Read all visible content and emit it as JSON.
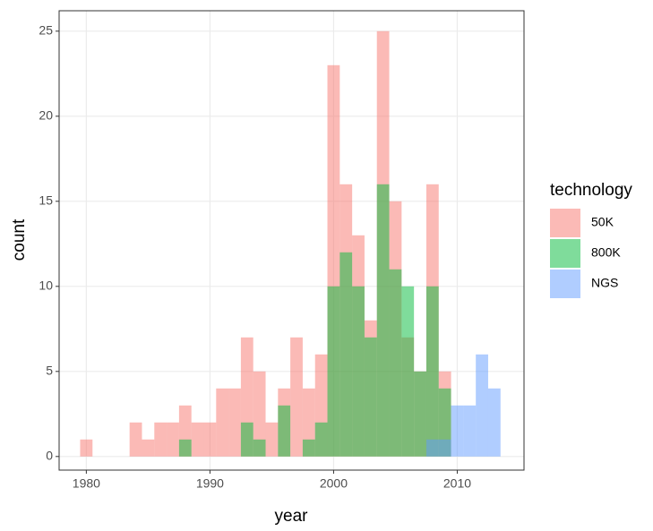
{
  "chart_data": {
    "type": "histogram",
    "x_label": "year",
    "y_label": "count",
    "legend_title": "technology",
    "bins": [
      1979.5,
      1980.5,
      1981.5,
      1982.5,
      1983.5,
      1984.5,
      1985.5,
      1986.5,
      1987.5,
      1988.5,
      1989.5,
      1990.5,
      1991.5,
      1992.5,
      1993.5,
      1994.5,
      1995.5,
      1996.5,
      1997.5,
      1998.5,
      1999.5,
      2000.5,
      2001.5,
      2002.5,
      2003.5,
      2004.5,
      2005.5,
      2006.5,
      2007.5,
      2008.5,
      2009.5,
      2010.5,
      2011.5,
      2012.5,
      2013.5
    ],
    "series": [
      {
        "name": "50K",
        "color": "#F8766D",
        "values": [
          1,
          0,
          0,
          0,
          2,
          1,
          2,
          2,
          3,
          2,
          2,
          4,
          4,
          7,
          5,
          2,
          4,
          7,
          4,
          6,
          23,
          16,
          13,
          8,
          25,
          15,
          7,
          5,
          16,
          5,
          0,
          0,
          0,
          0
        ]
      },
      {
        "name": "800K",
        "color": "#00BA38",
        "values": [
          0,
          0,
          0,
          0,
          0,
          0,
          0,
          0,
          1,
          0,
          0,
          0,
          0,
          2,
          1,
          0,
          3,
          0,
          1,
          2,
          10,
          12,
          10,
          7,
          16,
          11,
          10,
          5,
          10,
          4,
          0,
          0,
          0,
          0
        ]
      },
      {
        "name": "NGS",
        "color": "#619CFF",
        "values": [
          0,
          0,
          0,
          0,
          0,
          0,
          0,
          0,
          0,
          0,
          0,
          0,
          0,
          0,
          0,
          0,
          0,
          0,
          0,
          0,
          0,
          0,
          0,
          0,
          0,
          0,
          0,
          0,
          1,
          1,
          3,
          3,
          6,
          4
        ]
      }
    ],
    "opacity": 0.5,
    "xlim": [
      1977.8,
      2015.4
    ],
    "ylim": [
      -0.8,
      26.2
    ],
    "xticks": [
      1980,
      1990,
      2000,
      2010
    ],
    "yticks": [
      0,
      5,
      10,
      15,
      20,
      25
    ],
    "grid": true,
    "legend_position": "right"
  }
}
